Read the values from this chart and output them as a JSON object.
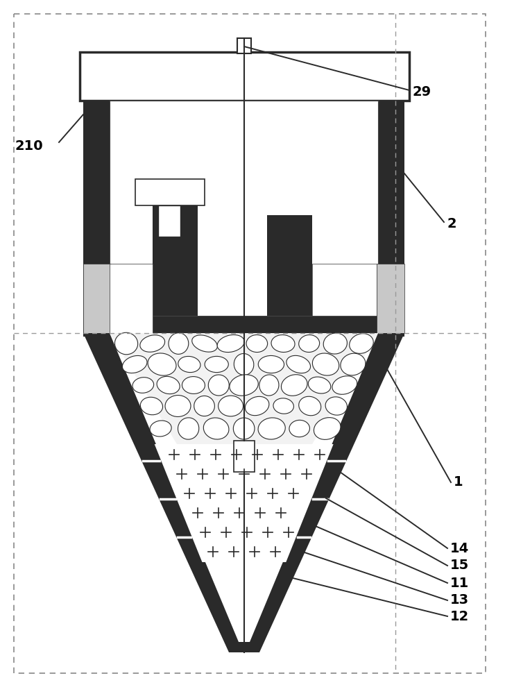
{
  "bg_color": "#ffffff",
  "dark_color": "#2a2a2a",
  "figure_width": 7.28,
  "figure_height": 10.0,
  "dpi": 100
}
